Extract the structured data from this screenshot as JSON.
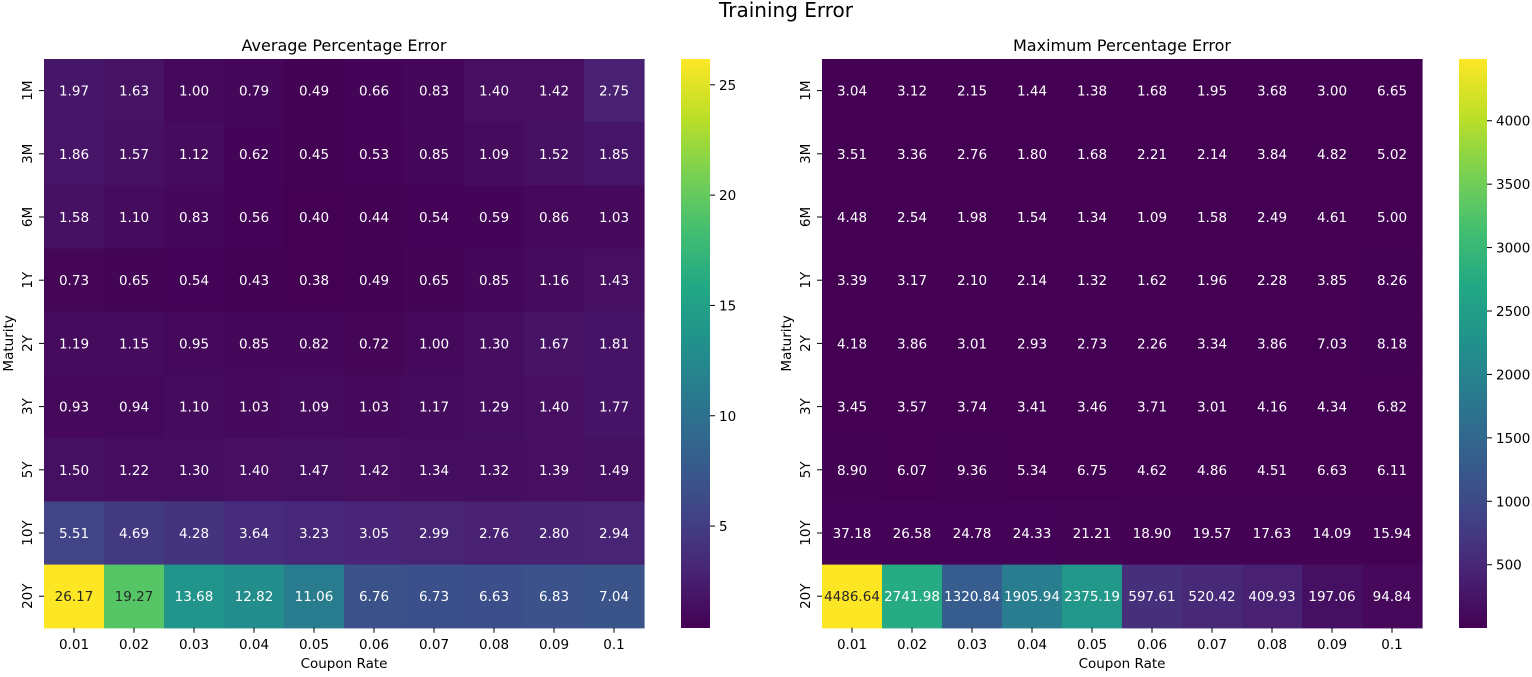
{
  "figure_title": "Training Error",
  "chart_data": [
    {
      "type": "heatmap",
      "title": "Average Percentage Error",
      "xlabel": "Coupon Rate",
      "ylabel": "Maturity",
      "x_categories": [
        "0.01",
        "0.02",
        "0.03",
        "0.04",
        "0.05",
        "0.06",
        "0.07",
        "0.08",
        "0.09",
        "0.1"
      ],
      "y_categories": [
        "1M",
        "3M",
        "6M",
        "1Y",
        "2Y",
        "3Y",
        "5Y",
        "10Y",
        "20Y"
      ],
      "values": [
        [
          1.97,
          1.63,
          1.0,
          0.79,
          0.49,
          0.66,
          0.83,
          1.4,
          1.42,
          2.75
        ],
        [
          1.86,
          1.57,
          1.12,
          0.62,
          0.45,
          0.53,
          0.85,
          1.09,
          1.52,
          1.85
        ],
        [
          1.58,
          1.1,
          0.83,
          0.56,
          0.4,
          0.44,
          0.54,
          0.59,
          0.86,
          1.03
        ],
        [
          0.73,
          0.65,
          0.54,
          0.43,
          0.38,
          0.49,
          0.65,
          0.85,
          1.16,
          1.43
        ],
        [
          1.19,
          1.15,
          0.95,
          0.85,
          0.82,
          0.72,
          1.0,
          1.3,
          1.67,
          1.81
        ],
        [
          0.93,
          0.94,
          1.1,
          1.03,
          1.09,
          1.03,
          1.17,
          1.29,
          1.4,
          1.77
        ],
        [
          1.5,
          1.22,
          1.3,
          1.4,
          1.47,
          1.42,
          1.34,
          1.32,
          1.39,
          1.49
        ],
        [
          5.51,
          4.69,
          4.28,
          3.64,
          3.23,
          3.05,
          2.99,
          2.76,
          2.8,
          2.94
        ],
        [
          26.17,
          19.27,
          13.68,
          12.82,
          11.06,
          6.76,
          6.73,
          6.63,
          6.83,
          7.04
        ]
      ],
      "colormap": "viridis",
      "vmin": 0.38,
      "vmax": 26.17,
      "colorbar_ticks": [
        5,
        10,
        15,
        20,
        25
      ]
    },
    {
      "type": "heatmap",
      "title": "Maximum Percentage Error",
      "xlabel": "Coupon Rate",
      "ylabel": "Maturity",
      "x_categories": [
        "0.01",
        "0.02",
        "0.03",
        "0.04",
        "0.05",
        "0.06",
        "0.07",
        "0.08",
        "0.09",
        "0.1"
      ],
      "y_categories": [
        "1M",
        "3M",
        "6M",
        "1Y",
        "2Y",
        "3Y",
        "5Y",
        "10Y",
        "20Y"
      ],
      "values": [
        [
          3.04,
          3.12,
          2.15,
          1.44,
          1.38,
          1.68,
          1.95,
          3.68,
          3.0,
          6.65
        ],
        [
          3.51,
          3.36,
          2.76,
          1.8,
          1.68,
          2.21,
          2.14,
          3.84,
          4.82,
          5.02
        ],
        [
          4.48,
          2.54,
          1.98,
          1.54,
          1.34,
          1.09,
          1.58,
          2.49,
          4.61,
          5.0
        ],
        [
          3.39,
          3.17,
          2.1,
          2.14,
          1.32,
          1.62,
          1.96,
          2.28,
          3.85,
          8.26
        ],
        [
          4.18,
          3.86,
          3.01,
          2.93,
          2.73,
          2.26,
          3.34,
          3.86,
          7.03,
          8.18
        ],
        [
          3.45,
          3.57,
          3.74,
          3.41,
          3.46,
          3.71,
          3.01,
          4.16,
          4.34,
          6.82
        ],
        [
          8.9,
          6.07,
          9.36,
          5.34,
          6.75,
          4.62,
          4.86,
          4.51,
          6.63,
          6.11
        ],
        [
          37.18,
          26.58,
          24.78,
          24.33,
          21.21,
          18.9,
          19.57,
          17.63,
          14.09,
          15.94
        ],
        [
          4486.64,
          2741.98,
          1320.84,
          1905.94,
          2375.19,
          597.61,
          520.42,
          409.93,
          197.06,
          94.84
        ]
      ],
      "colormap": "viridis",
      "vmin": 1.09,
      "vmax": 4486.64,
      "colorbar_ticks": [
        500,
        1000,
        1500,
        2000,
        2500,
        3000,
        3500,
        4000
      ]
    }
  ]
}
